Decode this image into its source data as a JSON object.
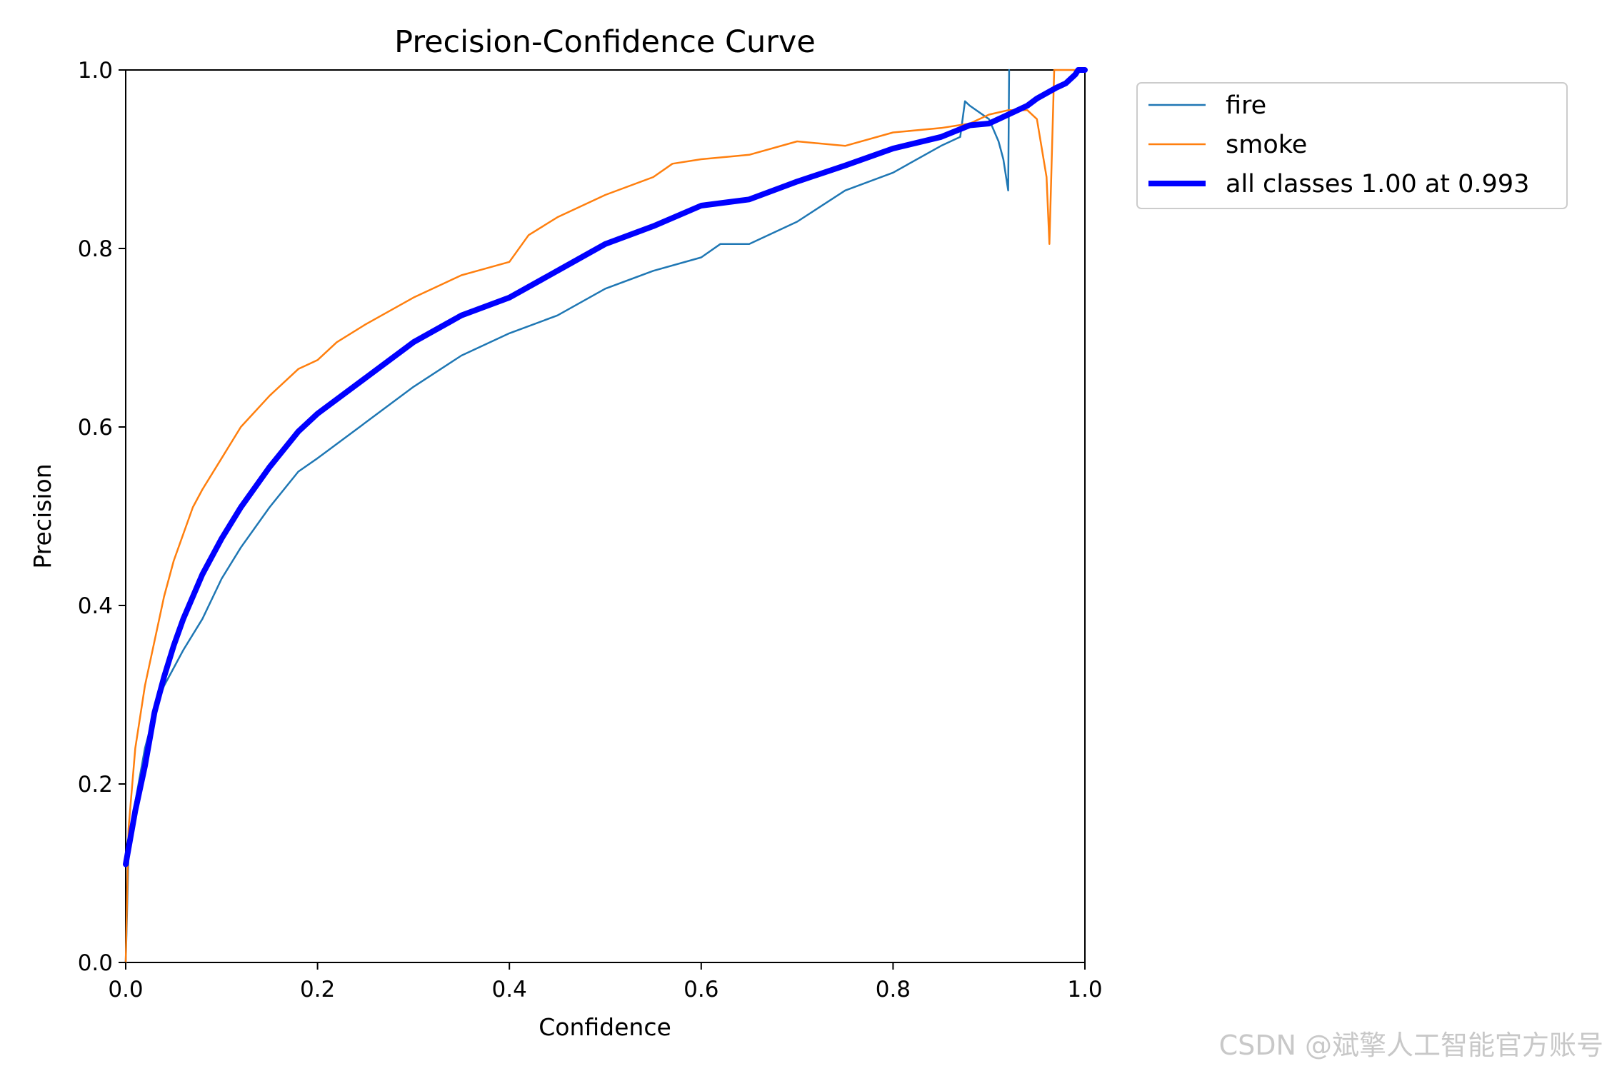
{
  "chart_data": {
    "type": "line",
    "title": "Precision-Confidence Curve",
    "xlabel": "Confidence",
    "ylabel": "Precision",
    "xlim": [
      0.0,
      1.0
    ],
    "ylim": [
      0.0,
      1.0
    ],
    "x_ticks": [
      "0.0",
      "0.2",
      "0.4",
      "0.6",
      "0.8",
      "1.0"
    ],
    "y_ticks": [
      "0.0",
      "0.2",
      "0.4",
      "0.6",
      "0.8",
      "1.0"
    ],
    "grid": false,
    "legend_position": "outside upper-right",
    "series": [
      {
        "name": "fire",
        "color": "#1f77b4",
        "line_weight": "thin",
        "points": [
          [
            0.0,
            0.0
          ],
          [
            0.003,
            0.12
          ],
          [
            0.01,
            0.18
          ],
          [
            0.02,
            0.24
          ],
          [
            0.03,
            0.28
          ],
          [
            0.04,
            0.31
          ],
          [
            0.05,
            0.33
          ],
          [
            0.06,
            0.35
          ],
          [
            0.08,
            0.385
          ],
          [
            0.1,
            0.43
          ],
          [
            0.12,
            0.465
          ],
          [
            0.15,
            0.51
          ],
          [
            0.18,
            0.55
          ],
          [
            0.2,
            0.565
          ],
          [
            0.25,
            0.605
          ],
          [
            0.3,
            0.645
          ],
          [
            0.35,
            0.68
          ],
          [
            0.4,
            0.705
          ],
          [
            0.45,
            0.725
          ],
          [
            0.5,
            0.755
          ],
          [
            0.55,
            0.775
          ],
          [
            0.6,
            0.79
          ],
          [
            0.62,
            0.805
          ],
          [
            0.65,
            0.805
          ],
          [
            0.7,
            0.83
          ],
          [
            0.75,
            0.865
          ],
          [
            0.8,
            0.885
          ],
          [
            0.85,
            0.915
          ],
          [
            0.87,
            0.925
          ],
          [
            0.875,
            0.965
          ],
          [
            0.88,
            0.96
          ],
          [
            0.9,
            0.945
          ],
          [
            0.91,
            0.92
          ],
          [
            0.915,
            0.9
          ],
          [
            0.92,
            0.865
          ],
          [
            0.921,
            1.0
          ]
        ]
      },
      {
        "name": "smoke",
        "color": "#ff7f0e",
        "line_weight": "thin",
        "points": [
          [
            0.0,
            0.0
          ],
          [
            0.003,
            0.15
          ],
          [
            0.01,
            0.24
          ],
          [
            0.02,
            0.31
          ],
          [
            0.03,
            0.36
          ],
          [
            0.04,
            0.41
          ],
          [
            0.05,
            0.45
          ],
          [
            0.06,
            0.48
          ],
          [
            0.07,
            0.51
          ],
          [
            0.08,
            0.53
          ],
          [
            0.1,
            0.565
          ],
          [
            0.12,
            0.6
          ],
          [
            0.15,
            0.635
          ],
          [
            0.18,
            0.665
          ],
          [
            0.2,
            0.675
          ],
          [
            0.22,
            0.695
          ],
          [
            0.25,
            0.715
          ],
          [
            0.3,
            0.745
          ],
          [
            0.33,
            0.76
          ],
          [
            0.35,
            0.77
          ],
          [
            0.4,
            0.785
          ],
          [
            0.42,
            0.815
          ],
          [
            0.45,
            0.835
          ],
          [
            0.5,
            0.86
          ],
          [
            0.55,
            0.88
          ],
          [
            0.57,
            0.895
          ],
          [
            0.6,
            0.9
          ],
          [
            0.65,
            0.905
          ],
          [
            0.7,
            0.92
          ],
          [
            0.75,
            0.915
          ],
          [
            0.8,
            0.93
          ],
          [
            0.85,
            0.935
          ],
          [
            0.88,
            0.94
          ],
          [
            0.9,
            0.95
          ],
          [
            0.92,
            0.955
          ],
          [
            0.94,
            0.955
          ],
          [
            0.95,
            0.945
          ],
          [
            0.96,
            0.88
          ],
          [
            0.963,
            0.805
          ],
          [
            0.968,
            1.0
          ],
          [
            1.0,
            1.0
          ]
        ]
      },
      {
        "name": "all classes 1.00 at 0.993",
        "color": "#0000ff",
        "line_weight": "thick",
        "points": [
          [
            0.0,
            0.11
          ],
          [
            0.01,
            0.17
          ],
          [
            0.02,
            0.22
          ],
          [
            0.03,
            0.28
          ],
          [
            0.04,
            0.32
          ],
          [
            0.05,
            0.355
          ],
          [
            0.06,
            0.385
          ],
          [
            0.08,
            0.435
          ],
          [
            0.1,
            0.475
          ],
          [
            0.12,
            0.51
          ],
          [
            0.15,
            0.555
          ],
          [
            0.18,
            0.595
          ],
          [
            0.2,
            0.615
          ],
          [
            0.25,
            0.655
          ],
          [
            0.3,
            0.695
          ],
          [
            0.35,
            0.725
          ],
          [
            0.4,
            0.745
          ],
          [
            0.45,
            0.775
          ],
          [
            0.5,
            0.805
          ],
          [
            0.55,
            0.825
          ],
          [
            0.6,
            0.848
          ],
          [
            0.65,
            0.855
          ],
          [
            0.7,
            0.875
          ],
          [
            0.75,
            0.893
          ],
          [
            0.8,
            0.912
          ],
          [
            0.85,
            0.925
          ],
          [
            0.88,
            0.938
          ],
          [
            0.9,
            0.94
          ],
          [
            0.92,
            0.95
          ],
          [
            0.94,
            0.96
          ],
          [
            0.95,
            0.968
          ],
          [
            0.97,
            0.98
          ],
          [
            0.98,
            0.985
          ],
          [
            0.99,
            0.995
          ],
          [
            0.993,
            1.0
          ],
          [
            1.0,
            1.0
          ]
        ]
      }
    ]
  },
  "watermark": "CSDN @斌擎人工智能官方账号"
}
